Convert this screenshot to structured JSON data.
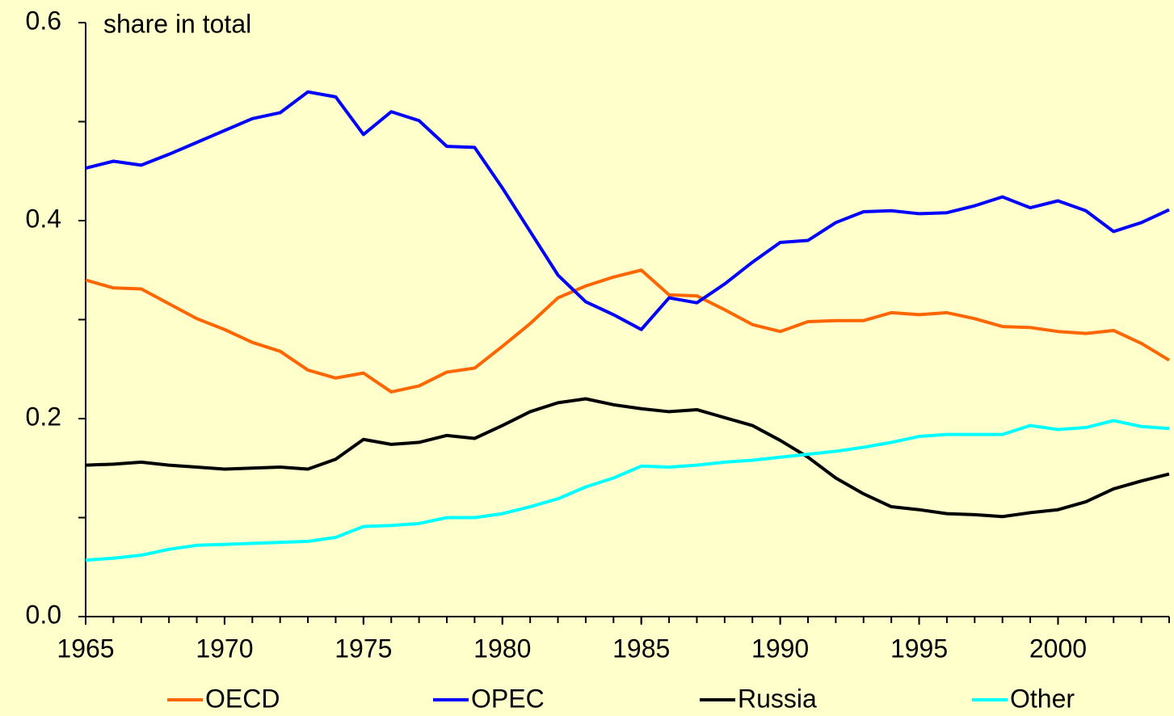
{
  "chart_data": {
    "type": "line",
    "annotation": "share in total",
    "x": [
      1965,
      1966,
      1967,
      1968,
      1969,
      1970,
      1971,
      1972,
      1973,
      1974,
      1975,
      1976,
      1977,
      1978,
      1979,
      1980,
      1981,
      1982,
      1983,
      1984,
      1985,
      1986,
      1987,
      1988,
      1989,
      1990,
      1991,
      1992,
      1993,
      1994,
      1995,
      1996,
      1997,
      1998,
      1999,
      2000,
      2001,
      2002,
      2003,
      2004
    ],
    "series": [
      {
        "name": "OECD",
        "color": "#ff6600",
        "values": [
          0.34,
          0.332,
          0.331,
          0.316,
          0.301,
          0.29,
          0.277,
          0.268,
          0.249,
          0.241,
          0.246,
          0.227,
          0.233,
          0.247,
          0.251,
          0.273,
          0.296,
          0.322,
          0.334,
          0.343,
          0.35,
          0.325,
          0.324,
          0.31,
          0.295,
          0.288,
          0.298,
          0.299,
          0.299,
          0.307,
          0.305,
          0.307,
          0.301,
          0.293,
          0.292,
          0.288,
          0.286,
          0.289,
          0.276,
          0.259
        ]
      },
      {
        "name": "OPEC",
        "color": "#0000ff",
        "values": [
          0.453,
          0.46,
          0.456,
          0.467,
          0.479,
          0.491,
          0.503,
          0.509,
          0.53,
          0.525,
          0.487,
          0.51,
          0.501,
          0.475,
          0.474,
          0.433,
          0.389,
          0.345,
          0.318,
          0.305,
          0.29,
          0.322,
          0.317,
          0.336,
          0.358,
          0.378,
          0.38,
          0.398,
          0.409,
          0.41,
          0.407,
          0.408,
          0.415,
          0.424,
          0.413,
          0.42,
          0.41,
          0.389,
          0.398,
          0.411
        ]
      },
      {
        "name": "Russia",
        "color": "#000000",
        "values": [
          0.153,
          0.154,
          0.156,
          0.153,
          0.151,
          0.149,
          0.15,
          0.151,
          0.149,
          0.159,
          0.179,
          0.174,
          0.176,
          0.183,
          0.18,
          0.193,
          0.207,
          0.216,
          0.22,
          0.214,
          0.21,
          0.207,
          0.209,
          0.201,
          0.193,
          0.178,
          0.161,
          0.14,
          0.124,
          0.111,
          0.108,
          0.104,
          0.103,
          0.101,
          0.105,
          0.108,
          0.116,
          0.129,
          0.137,
          0.144
        ]
      },
      {
        "name": "Other",
        "color": "#00ffff",
        "values": [
          0.057,
          0.059,
          0.062,
          0.068,
          0.072,
          0.073,
          0.074,
          0.075,
          0.076,
          0.08,
          0.091,
          0.092,
          0.094,
          0.1,
          0.1,
          0.104,
          0.111,
          0.119,
          0.131,
          0.14,
          0.152,
          0.151,
          0.153,
          0.156,
          0.158,
          0.161,
          0.164,
          0.167,
          0.171,
          0.176,
          0.182,
          0.184,
          0.184,
          0.184,
          0.193,
          0.189,
          0.191,
          0.198,
          0.192,
          0.19
        ]
      }
    ],
    "xlim": [
      1965,
      2004
    ],
    "xticks": [
      1965,
      1970,
      1975,
      1980,
      1985,
      1990,
      1995,
      2000
    ],
    "ylim": [
      0,
      0.6
    ],
    "yticks": [
      {
        "value": 0,
        "label": "0.0"
      },
      0.2,
      0.4,
      0.6
    ],
    "y_minor_ticks": [
      0.1,
      0.3,
      0.5
    ],
    "legend": "bottom",
    "background": "#ffffcc"
  }
}
